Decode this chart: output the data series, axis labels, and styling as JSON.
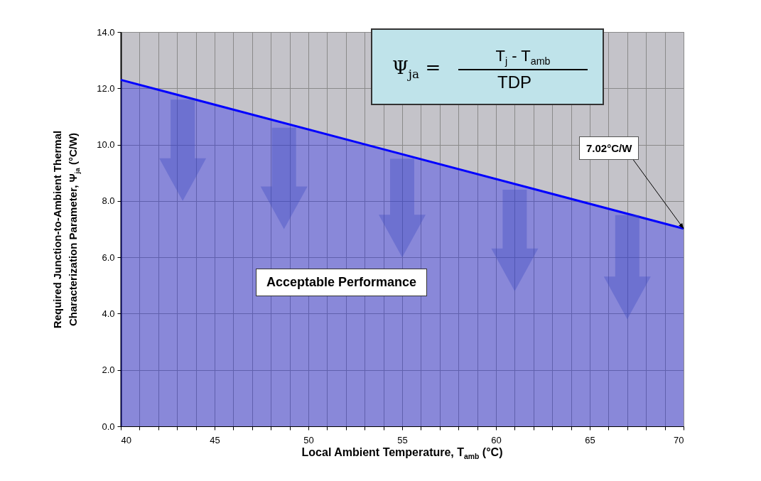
{
  "chart_data": {
    "type": "area",
    "xlabel": "Local Ambient Temperature, T$_{amb}$ (°C)",
    "ylabel": "Required Junction-to-Ambient Thermal Characterization Parameter, Ψ$_{ja}$ (°C/W)",
    "x": [
      40,
      70
    ],
    "series": [
      {
        "color": "#0000ff",
        "values": [
          12.3,
          7.02
        ]
      }
    ],
    "xlim": [
      40,
      70
    ],
    "xticks": [
      40,
      {
        "value": 41,
        "label": null
      },
      {
        "value": 42,
        "label": null
      },
      {
        "value": 43,
        "label": null
      },
      {
        "value": 44,
        "label": null
      },
      45,
      {
        "value": 46,
        "label": null
      },
      {
        "value": 47,
        "label": null
      },
      {
        "value": 48,
        "label": null
      },
      {
        "value": 49,
        "label": null
      },
      50,
      {
        "value": 51,
        "label": null
      },
      {
        "value": 52,
        "label": null
      },
      {
        "value": 53,
        "label": null
      },
      {
        "value": 54,
        "label": null
      },
      55,
      {
        "value": 56,
        "label": null
      },
      {
        "value": 57,
        "label": null
      },
      {
        "value": 58,
        "label": null
      },
      {
        "value": 59,
        "label": null
      },
      60,
      {
        "value": 61,
        "label": null
      },
      {
        "value": 62,
        "label": null
      },
      {
        "value": 63,
        "label": null
      },
      {
        "value": 64,
        "label": null
      },
      65,
      {
        "value": 66,
        "label": null
      },
      {
        "value": 67,
        "label": null
      },
      {
        "value": 68,
        "label": null
      },
      {
        "value": 69,
        "label": null
      },
      70
    ],
    "ylim": [
      0,
      14
    ],
    "yticks": [
      {
        "value": 0,
        "label": "0.0"
      },
      {
        "value": 2,
        "label": "2.0"
      },
      {
        "value": 4,
        "label": "4.0"
      },
      {
        "value": 6,
        "label": "6.0"
      },
      {
        "value": 8,
        "label": "8.0"
      },
      {
        "value": 10,
        "label": "10.0"
      },
      {
        "value": 12,
        "label": "12.0"
      },
      {
        "value": 14,
        "label": "14.0"
      }
    ],
    "grid": true,
    "marker": "none",
    "annotations": [
      "Ψ$_{ja}$ =",
      "T$_{j}$ - T$_{amb}$",
      "TDP",
      "Acceptable Performance",
      {
        "text": "7.02°C/W",
        "x": 70,
        "y": 7.02
      }
    ]
  }
}
